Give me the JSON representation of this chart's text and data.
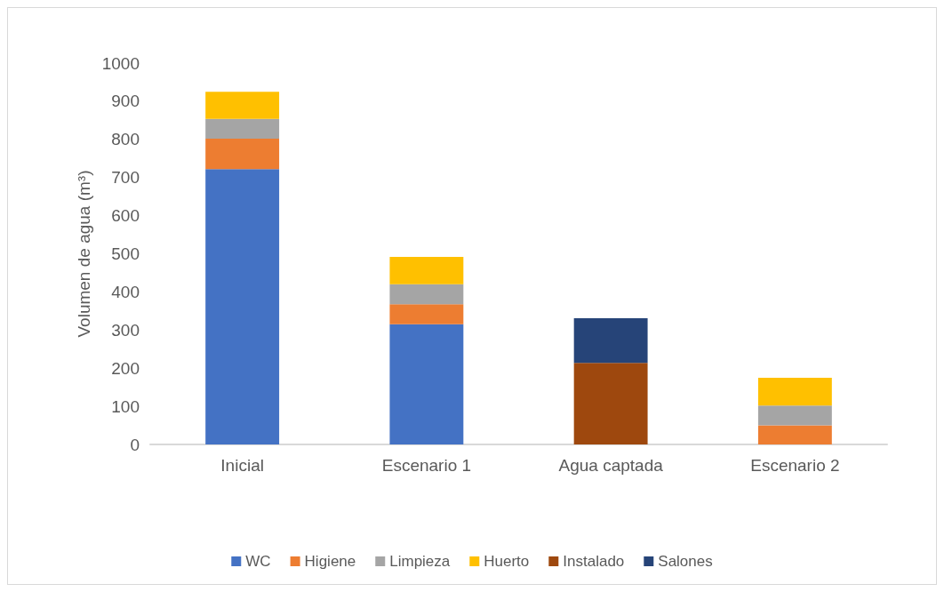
{
  "chart_data": {
    "type": "bar",
    "stacked": true,
    "ylabel": "Volumen de agua (m³)",
    "categories": [
      "Inicial",
      "Escenario 1",
      "Agua captada",
      "Escenario 2"
    ],
    "series": [
      {
        "name": "WC",
        "color": "#4472c4",
        "values": [
          722,
          315,
          null,
          null
        ]
      },
      {
        "name": "Higiene",
        "color": "#ed7d31",
        "values": [
          80,
          53,
          null,
          50
        ]
      },
      {
        "name": "Limpieza",
        "color": "#a5a5a5",
        "values": [
          52,
          52,
          null,
          52
        ]
      },
      {
        "name": "Huerto",
        "color": "#ffc000",
        "values": [
          71,
          72,
          null,
          73
        ]
      },
      {
        "name": "Instalado",
        "color": "#9e480e",
        "values": [
          null,
          null,
          214,
          null
        ]
      },
      {
        "name": "Salones",
        "color": "#264478",
        "values": [
          null,
          null,
          117,
          null
        ]
      }
    ],
    "ylim": [
      0,
      1000
    ],
    "yticks": [
      0,
      100,
      200,
      300,
      400,
      500,
      600,
      700,
      800,
      900,
      1000
    ],
    "grid": false,
    "legend": "bottom"
  }
}
